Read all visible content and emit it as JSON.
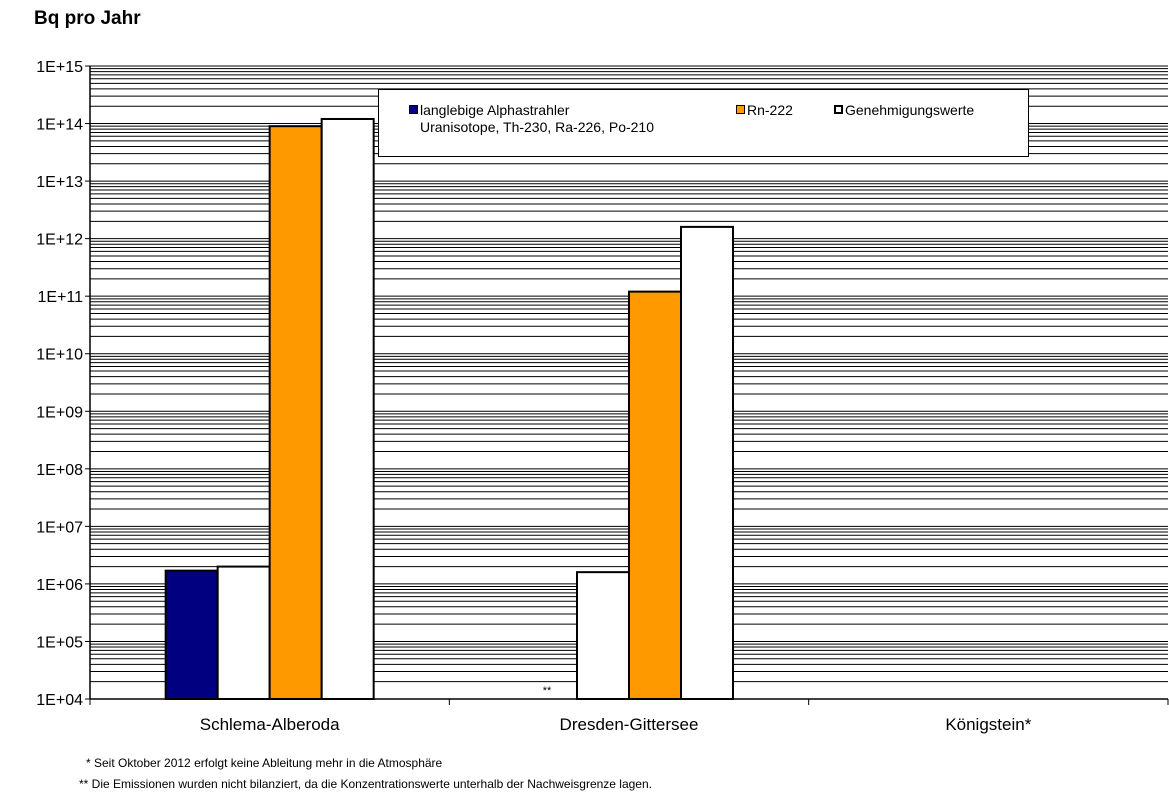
{
  "chart_data": {
    "type": "bar",
    "title": "Bq pro Jahr",
    "yscale": "log",
    "ylim": [
      10000,
      1000000000000000
    ],
    "ytick_labels": [
      "1E+04",
      "1E+05",
      "1E+06",
      "1E+07",
      "1E+08",
      "1E+09",
      "1E+10",
      "1E+11",
      "1E+12",
      "1E+13",
      "1E+14",
      "1E+15"
    ],
    "categories": [
      "Schlema-Alberoda",
      "Dresden-Gittersee",
      "Königstein*"
    ],
    "grid": true,
    "legend_position": "top-center",
    "series": [
      {
        "name": "langlebige Alphastrahler",
        "name_line2": "Uranisotope, Th-230, Ra-226, Po-210",
        "color": "#000080",
        "values": [
          1700000,
          null,
          null
        ]
      },
      {
        "name": "Genehmigungswerte",
        "color": "#ffffff",
        "values": [
          2000000,
          1600000,
          null
        ]
      },
      {
        "name": "Rn-222",
        "color": "#ff9900",
        "values": [
          90000000000000,
          120000000000,
          null
        ]
      },
      {
        "name": "Genehmigungswerte",
        "color": "#ffffff",
        "values": [
          120000000000000,
          1600000000000,
          null
        ]
      }
    ],
    "annotations": [
      {
        "text": "**",
        "category": "Dresden-Gittersee"
      }
    ]
  },
  "legend": {
    "alpha_line1": "langlebige Alphastrahler",
    "alpha_line2": "Uranisotope, Th-230, Ra-226, Po-210",
    "rn": "Rn-222",
    "gen": "Genehmigungswerte"
  },
  "footnotes": {
    "note1": "* Seit Oktober 2012 erfolgt keine Ableitung mehr in die Atmosphäre",
    "note2": "** Die Emissionen wurden nicht bilanziert, da die Konzentrationswerte unterhalb der Nachweisgrenze lagen."
  }
}
